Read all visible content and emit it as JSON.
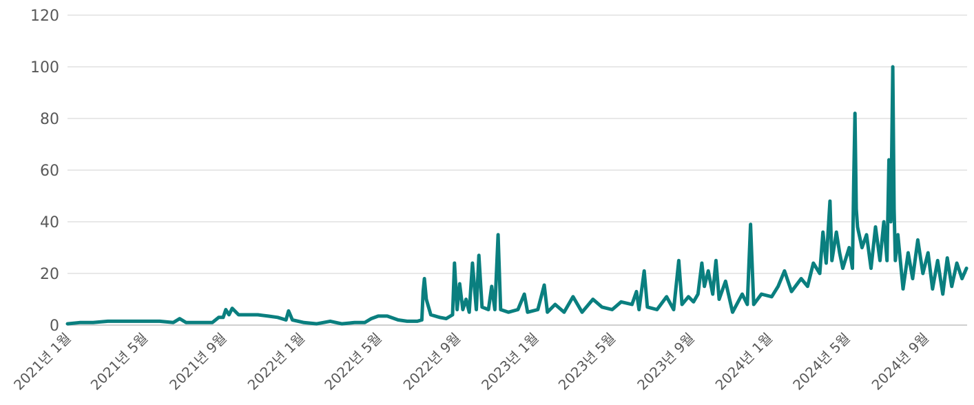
{
  "chart_data": {
    "type": "line",
    "title": "",
    "xlabel": "",
    "ylabel": "",
    "ylim": [
      0,
      120
    ],
    "xlim": [
      "2021-01-01",
      "2024-11-05"
    ],
    "y_ticks": [
      0,
      20,
      40,
      60,
      80,
      100,
      120
    ],
    "x_ticks": [
      {
        "date": "2021-01-01",
        "label": "2021년 1월"
      },
      {
        "date": "2021-05-01",
        "label": "2021년 5월"
      },
      {
        "date": "2021-09-01",
        "label": "2021년 9월"
      },
      {
        "date": "2022-01-01",
        "label": "2022년 1월"
      },
      {
        "date": "2022-05-01",
        "label": "2022년 5월"
      },
      {
        "date": "2022-09-01",
        "label": "2022년 9월"
      },
      {
        "date": "2023-01-01",
        "label": "2023년 1월"
      },
      {
        "date": "2023-05-01",
        "label": "2023년 5월"
      },
      {
        "date": "2023-09-01",
        "label": "2023년 9월"
      },
      {
        "date": "2024-01-01",
        "label": "2024년 1월"
      },
      {
        "date": "2024-05-01",
        "label": "2024년 5월"
      },
      {
        "date": "2024-09-01",
        "label": "2024년 9월"
      }
    ],
    "grid": true,
    "legend": "none",
    "series": [
      {
        "color": "#0a7f7f",
        "points": [
          [
            "2021-01-01",
            0.5
          ],
          [
            "2021-01-20",
            1
          ],
          [
            "2021-02-10",
            1
          ],
          [
            "2021-03-05",
            1.5
          ],
          [
            "2021-03-25",
            1.5
          ],
          [
            "2021-04-15",
            1.5
          ],
          [
            "2021-05-05",
            1.5
          ],
          [
            "2021-05-25",
            1.5
          ],
          [
            "2021-06-15",
            1
          ],
          [
            "2021-06-25",
            2.5
          ],
          [
            "2021-07-05",
            1
          ],
          [
            "2021-07-25",
            1
          ],
          [
            "2021-08-15",
            1
          ],
          [
            "2021-08-25",
            3
          ],
          [
            "2021-09-01",
            3
          ],
          [
            "2021-09-05",
            6
          ],
          [
            "2021-09-10",
            4
          ],
          [
            "2021-09-15",
            6.5
          ],
          [
            "2021-09-25",
            4
          ],
          [
            "2021-10-10",
            4
          ],
          [
            "2021-10-25",
            4
          ],
          [
            "2021-11-10",
            3.5
          ],
          [
            "2021-11-25",
            3
          ],
          [
            "2021-12-08",
            2
          ],
          [
            "2021-12-12",
            5.5
          ],
          [
            "2021-12-18",
            2
          ],
          [
            "2022-01-05",
            1
          ],
          [
            "2022-01-25",
            0.5
          ],
          [
            "2022-02-15",
            1.5
          ],
          [
            "2022-03-05",
            0.5
          ],
          [
            "2022-03-25",
            1
          ],
          [
            "2022-04-10",
            1
          ],
          [
            "2022-04-20",
            2.5
          ],
          [
            "2022-05-01",
            3.5
          ],
          [
            "2022-05-15",
            3.5
          ],
          [
            "2022-06-01",
            2
          ],
          [
            "2022-06-15",
            1.5
          ],
          [
            "2022-07-01",
            1.5
          ],
          [
            "2022-07-08",
            2
          ],
          [
            "2022-07-10",
            13
          ],
          [
            "2022-07-12",
            18
          ],
          [
            "2022-07-15",
            10
          ],
          [
            "2022-07-22",
            4
          ],
          [
            "2022-08-05",
            3
          ],
          [
            "2022-08-15",
            2.5
          ],
          [
            "2022-08-25",
            4
          ],
          [
            "2022-08-28",
            24
          ],
          [
            "2022-09-01",
            6
          ],
          [
            "2022-09-05",
            16
          ],
          [
            "2022-09-10",
            6
          ],
          [
            "2022-09-15",
            10
          ],
          [
            "2022-09-20",
            5
          ],
          [
            "2022-09-25",
            24
          ],
          [
            "2022-10-01",
            6
          ],
          [
            "2022-10-05",
            27
          ],
          [
            "2022-10-10",
            7
          ],
          [
            "2022-10-20",
            6
          ],
          [
            "2022-10-25",
            15
          ],
          [
            "2022-10-30",
            6
          ],
          [
            "2022-11-04",
            35
          ],
          [
            "2022-11-08",
            6
          ],
          [
            "2022-11-20",
            5
          ],
          [
            "2022-12-05",
            6
          ],
          [
            "2022-12-15",
            12
          ],
          [
            "2022-12-20",
            5
          ],
          [
            "2023-01-05",
            6
          ],
          [
            "2023-01-15",
            15.5
          ],
          [
            "2023-01-20",
            5
          ],
          [
            "2023-02-01",
            8
          ],
          [
            "2023-02-15",
            5
          ],
          [
            "2023-03-01",
            11
          ],
          [
            "2023-03-15",
            5
          ],
          [
            "2023-04-01",
            10
          ],
          [
            "2023-04-15",
            7
          ],
          [
            "2023-05-01",
            6
          ],
          [
            "2023-05-15",
            9
          ],
          [
            "2023-06-01",
            8
          ],
          [
            "2023-06-08",
            13
          ],
          [
            "2023-06-12",
            6
          ],
          [
            "2023-06-20",
            21
          ],
          [
            "2023-06-25",
            7
          ],
          [
            "2023-07-10",
            6
          ],
          [
            "2023-07-25",
            11
          ],
          [
            "2023-08-05",
            6
          ],
          [
            "2023-08-13",
            25
          ],
          [
            "2023-08-18",
            8
          ],
          [
            "2023-08-28",
            11
          ],
          [
            "2023-09-05",
            9
          ],
          [
            "2023-09-12",
            12
          ],
          [
            "2023-09-18",
            24
          ],
          [
            "2023-09-22",
            15
          ],
          [
            "2023-09-28",
            21
          ],
          [
            "2023-10-05",
            12
          ],
          [
            "2023-10-10",
            25
          ],
          [
            "2023-10-15",
            10
          ],
          [
            "2023-10-25",
            17
          ],
          [
            "2023-11-05",
            5
          ],
          [
            "2023-11-20",
            12
          ],
          [
            "2023-11-28",
            8
          ],
          [
            "2023-12-03",
            39
          ],
          [
            "2023-12-08",
            8
          ],
          [
            "2023-12-20",
            12
          ],
          [
            "2024-01-05",
            11
          ],
          [
            "2024-01-15",
            15
          ],
          [
            "2024-01-25",
            21
          ],
          [
            "2024-02-05",
            13
          ],
          [
            "2024-02-20",
            18
          ],
          [
            "2024-03-01",
            15
          ],
          [
            "2024-03-10",
            24
          ],
          [
            "2024-03-20",
            20
          ],
          [
            "2024-03-25",
            36
          ],
          [
            "2024-03-30",
            24
          ],
          [
            "2024-04-05",
            48
          ],
          [
            "2024-04-08",
            25
          ],
          [
            "2024-04-15",
            36
          ],
          [
            "2024-04-20",
            28
          ],
          [
            "2024-04-25",
            22
          ],
          [
            "2024-05-05",
            30
          ],
          [
            "2024-05-10",
            22
          ],
          [
            "2024-05-12",
            56
          ],
          [
            "2024-05-14",
            82
          ],
          [
            "2024-05-16",
            45
          ],
          [
            "2024-05-18",
            38
          ],
          [
            "2024-05-25",
            30
          ],
          [
            "2024-06-01",
            35
          ],
          [
            "2024-06-08",
            22
          ],
          [
            "2024-06-15",
            38
          ],
          [
            "2024-06-22",
            25
          ],
          [
            "2024-06-28",
            40
          ],
          [
            "2024-07-03",
            25
          ],
          [
            "2024-07-06",
            64
          ],
          [
            "2024-07-09",
            40
          ],
          [
            "2024-07-12",
            100
          ],
          [
            "2024-07-14",
            45
          ],
          [
            "2024-07-16",
            25
          ],
          [
            "2024-07-20",
            35
          ],
          [
            "2024-07-28",
            14
          ],
          [
            "2024-08-05",
            28
          ],
          [
            "2024-08-12",
            18
          ],
          [
            "2024-08-20",
            33
          ],
          [
            "2024-08-28",
            20
          ],
          [
            "2024-09-05",
            28
          ],
          [
            "2024-09-12",
            14
          ],
          [
            "2024-09-20",
            25
          ],
          [
            "2024-09-28",
            12
          ],
          [
            "2024-10-05",
            26
          ],
          [
            "2024-10-12",
            15
          ],
          [
            "2024-10-20",
            24
          ],
          [
            "2024-10-28",
            18
          ],
          [
            "2024-11-04",
            22
          ]
        ]
      }
    ]
  }
}
